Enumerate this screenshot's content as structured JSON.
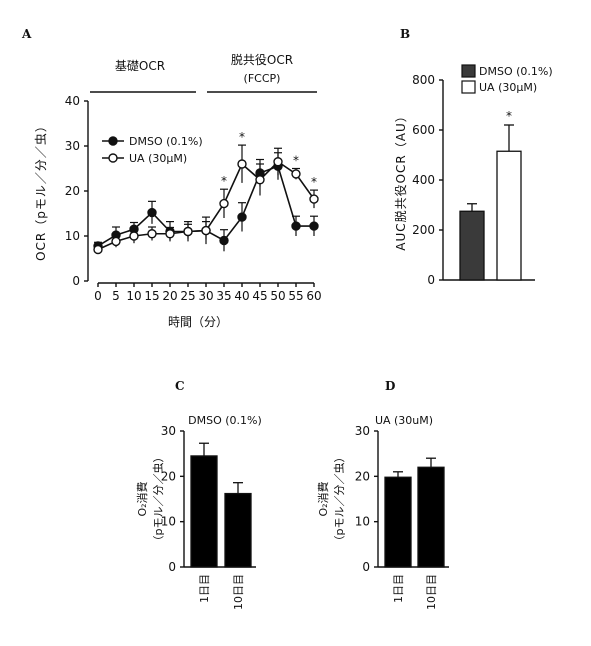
{
  "chart_data": [
    {
      "panel": "A",
      "type": "line",
      "section_labels": [
        {
          "label": "基礎OCR",
          "sublabel": ""
        },
        {
          "label": "脱共役OCR",
          "sublabel": "(FCCP)"
        }
      ],
      "xlabel": "時間（分）",
      "ylabel": "OCR（pモル／分／虫）",
      "x": [
        0,
        5,
        10,
        15,
        20,
        25,
        30,
        35,
        40,
        45,
        50,
        55,
        60
      ],
      "ylim": [
        0,
        40
      ],
      "yticks": [
        0,
        10,
        20,
        30,
        40
      ],
      "series": [
        {
          "name": "DMSO (0.1%)",
          "marker": "filled",
          "values": [
            7.8,
            10.2,
            11.5,
            15.2,
            11.0,
            11.0,
            11.2,
            9.0,
            14.2,
            24.0,
            25.5,
            12.2,
            12.2
          ],
          "error": [
            0.8,
            1.8,
            1.5,
            2.5,
            2.2,
            2.2,
            3.0,
            2.4,
            3.2,
            3.0,
            3.0,
            2.2,
            2.2
          ]
        },
        {
          "name": "UA (30μM)",
          "marker": "open",
          "values": [
            7.0,
            8.8,
            10.0,
            10.5,
            10.5,
            11.0,
            11.2,
            17.2,
            26.0,
            22.5,
            26.5,
            23.8,
            18.2
          ],
          "error": [
            0.8,
            1.3,
            1.6,
            1.5,
            1.4,
            1.6,
            2.0,
            3.2,
            4.2,
            3.5,
            3.0,
            1.2,
            2.0
          ]
        }
      ],
      "significance": [
        {
          "x": 35,
          "label": "*"
        },
        {
          "x": 40,
          "label": "*"
        },
        {
          "x": 55,
          "label": "*"
        },
        {
          "x": 60,
          "label": "*"
        }
      ]
    },
    {
      "panel": "B",
      "type": "bar",
      "ylabel": "AUC脱共役OCR（AU）",
      "ylim": [
        0,
        800
      ],
      "yticks": [
        0,
        200,
        400,
        600,
        800
      ],
      "categories": [
        "DMSO (0.1%)",
        "UA (30μM)"
      ],
      "values": [
        275,
        515
      ],
      "error": [
        30,
        105
      ],
      "colors": [
        "#3a3a3a",
        "#ffffff"
      ],
      "significance": [
        {
          "category": "UA (30μM)",
          "label": "*"
        }
      ]
    },
    {
      "panel": "C",
      "type": "bar",
      "title": "DMSO (0.1%)",
      "ylabel_lines": [
        "O₂消費",
        "（pモル／分／虫）"
      ],
      "ylim": [
        0,
        30
      ],
      "yticks": [
        0,
        10,
        20,
        30
      ],
      "categories": [
        "1日目",
        "10日目"
      ],
      "values": [
        24.5,
        16.2
      ],
      "error": [
        2.8,
        2.4
      ]
    },
    {
      "panel": "D",
      "type": "bar",
      "title": "UA (30uM)",
      "ylabel_lines": [
        "O₂消費",
        "（pモル／分／虫）"
      ],
      "ylim": [
        0,
        30
      ],
      "yticks": [
        0,
        10,
        20,
        30
      ],
      "categories": [
        "1日目",
        "10日目"
      ],
      "values": [
        19.8,
        22.0
      ],
      "error": [
        1.2,
        2.0
      ]
    }
  ],
  "colors": {
    "axis": "#111111",
    "dark_bar": "#3a3a3a",
    "black_bar": "#000000"
  }
}
